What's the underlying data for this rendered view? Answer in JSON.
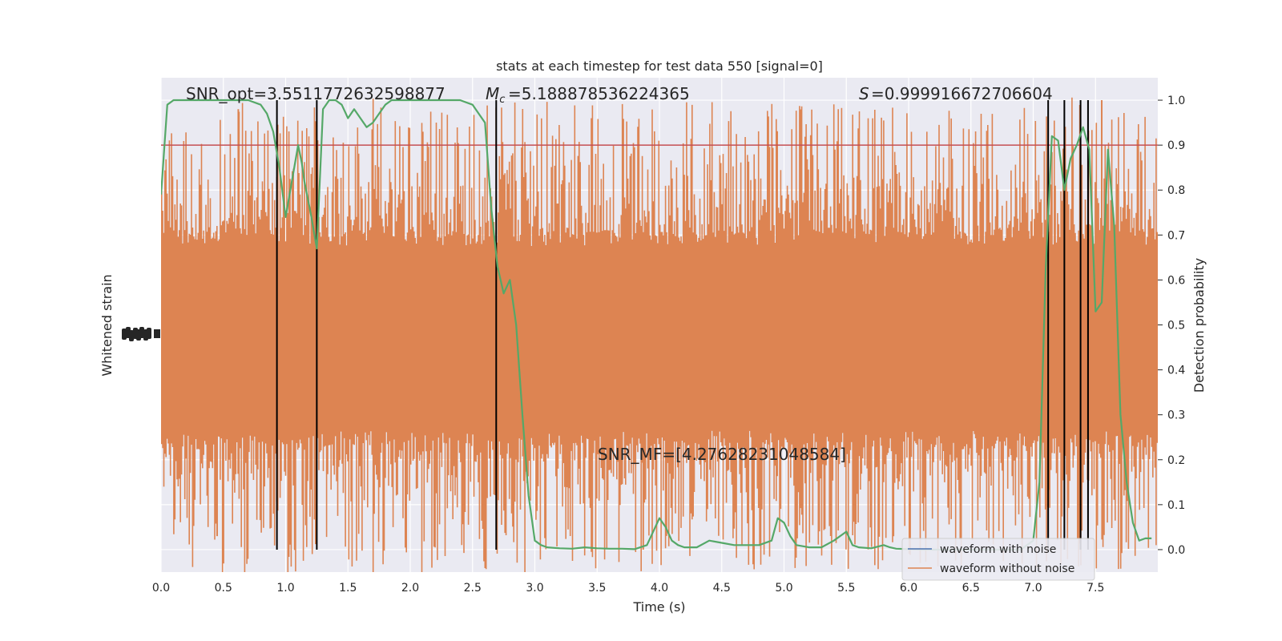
{
  "chart_data": {
    "type": "line",
    "title": "stats at each timestep for test data 550 [signal=0]",
    "xlabel": "Time (s)",
    "ylabel_left": "Whitened strain",
    "ylabel_right": "Detection probability",
    "xlim": [
      0,
      8
    ],
    "ylim_right": [
      -0.05,
      1.05
    ],
    "x_ticks": [
      "0.0",
      "0.5",
      "1.0",
      "1.5",
      "2.0",
      "2.5",
      "3.0",
      "3.5",
      "4.0",
      "4.5",
      "5.0",
      "5.5",
      "6.0",
      "6.5",
      "7.0",
      "7.5"
    ],
    "y_ticks_right": [
      "0.0",
      "0.1",
      "0.2",
      "0.3",
      "0.4",
      "0.5",
      "0.6",
      "0.7",
      "0.8",
      "0.9",
      "1.0"
    ],
    "grid": true,
    "threshold": 0.9,
    "vlines": [
      0.93,
      1.25,
      2.69,
      7.12,
      7.25,
      7.38,
      7.44
    ],
    "annotations": {
      "snr_opt": "SNR_opt=3.5511772632598877",
      "mc": "=5.188878536224365",
      "s": "=0.999916672706604",
      "snr_mf": "SNR_MF=[4.27628231048584]"
    },
    "legend": {
      "position": "lower right",
      "entries": [
        "waveform with noise",
        "waveform without noise"
      ]
    },
    "colors": {
      "noise_fill": "#dd8452",
      "with_noise": "#4c72b0",
      "probability": "#55a868",
      "threshold": "#c44e52",
      "vline": "#000000",
      "axes_bg": "#eaeaf2"
    },
    "series": [
      {
        "name": "detection probability",
        "x": [
          0.0,
          0.05,
          0.1,
          0.15,
          0.2,
          0.3,
          0.4,
          0.5,
          0.6,
          0.7,
          0.8,
          0.85,
          0.9,
          0.95,
          1.0,
          1.05,
          1.1,
          1.13,
          1.15,
          1.2,
          1.25,
          1.3,
          1.35,
          1.4,
          1.45,
          1.5,
          1.55,
          1.6,
          1.65,
          1.7,
          1.75,
          1.8,
          1.85,
          1.9,
          2.0,
          2.1,
          2.2,
          2.3,
          2.4,
          2.5,
          2.55,
          2.6,
          2.65,
          2.7,
          2.75,
          2.8,
          2.85,
          2.9,
          2.95,
          3.0,
          3.05,
          3.1,
          3.2,
          3.3,
          3.4,
          3.5,
          3.6,
          3.7,
          3.8,
          3.9,
          4.0,
          4.05,
          4.1,
          4.15,
          4.2,
          4.3,
          4.4,
          4.5,
          4.6,
          4.7,
          4.8,
          4.9,
          4.95,
          5.0,
          5.05,
          5.1,
          5.2,
          5.3,
          5.4,
          5.5,
          5.55,
          5.6,
          5.7,
          5.8,
          5.85,
          5.9,
          6.0,
          6.1,
          6.2,
          6.3,
          6.4,
          6.5,
          6.6,
          6.7,
          6.8,
          6.9,
          7.0,
          7.05,
          7.1,
          7.15,
          7.2,
          7.25,
          7.3,
          7.35,
          7.4,
          7.45,
          7.5,
          7.55,
          7.6,
          7.65,
          7.7,
          7.75,
          7.8,
          7.85,
          7.9,
          7.95
        ],
        "values": [
          0.79,
          0.99,
          1.0,
          1.0,
          1.0,
          1.0,
          1.0,
          1.0,
          1.0,
          1.0,
          0.99,
          0.97,
          0.93,
          0.85,
          0.74,
          0.82,
          0.9,
          0.86,
          0.82,
          0.75,
          0.67,
          0.98,
          1.0,
          1.0,
          0.99,
          0.96,
          0.98,
          0.96,
          0.94,
          0.95,
          0.97,
          0.99,
          1.0,
          1.0,
          1.0,
          1.0,
          1.0,
          1.0,
          1.0,
          0.99,
          0.97,
          0.95,
          0.76,
          0.63,
          0.57,
          0.6,
          0.5,
          0.3,
          0.12,
          0.02,
          0.01,
          0.005,
          0.003,
          0.002,
          0.005,
          0.003,
          0.002,
          0.002,
          0.001,
          0.01,
          0.07,
          0.05,
          0.02,
          0.01,
          0.005,
          0.005,
          0.02,
          0.015,
          0.01,
          0.01,
          0.01,
          0.02,
          0.07,
          0.06,
          0.03,
          0.01,
          0.005,
          0.005,
          0.02,
          0.04,
          0.01,
          0.005,
          0.003,
          0.01,
          0.005,
          0.002,
          0.001,
          0.0,
          0.0,
          0.0,
          0.0,
          0.0,
          0.0,
          0.0,
          0.0,
          0.0,
          0.02,
          0.15,
          0.62,
          0.92,
          0.91,
          0.8,
          0.87,
          0.9,
          0.94,
          0.89,
          0.53,
          0.55,
          0.89,
          0.72,
          0.3,
          0.15,
          0.06,
          0.02,
          0.025,
          0.025
        ]
      }
    ]
  }
}
